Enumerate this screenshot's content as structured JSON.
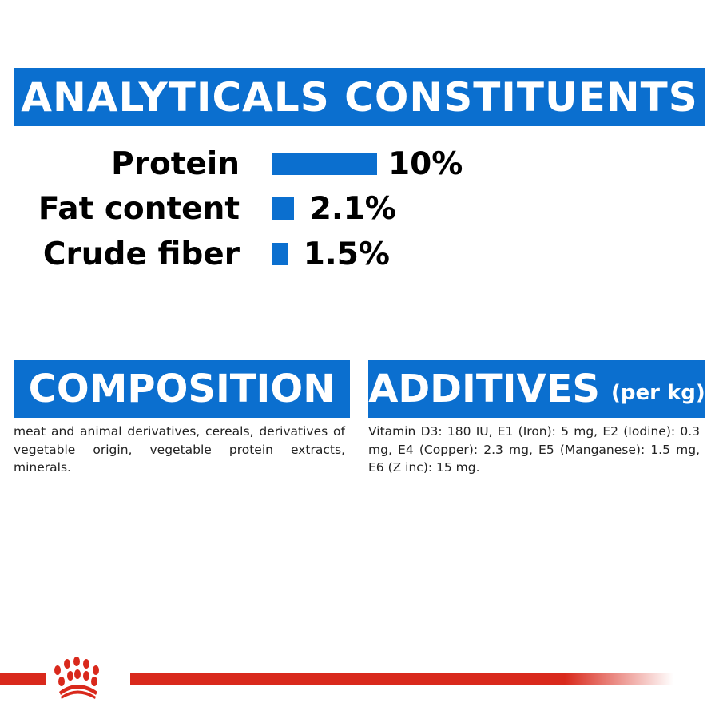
{
  "header": {
    "title": "ANALYTICALS CONSTITUENTS"
  },
  "constituents": [
    {
      "label": "Protein",
      "value": "10%",
      "percent": 10
    },
    {
      "label": "Fat content",
      "value": "2.1%",
      "percent": 2.1
    },
    {
      "label": "Crude fiber",
      "value": "1.5%",
      "percent": 1.5
    }
  ],
  "composition": {
    "title": "COMPOSITION",
    "text": "meat and animal derivatives, cereals, derivatives of vegetable origin, vegetable protein extracts, minerals."
  },
  "additives": {
    "title": "ADDITIVES",
    "subtitle": "(per kg)",
    "text": "Vitamin D3: 180 IU, E1 (Iron): 5 mg, E2 (Iodine): 0.3 mg, E4 (Copper): 2.3 mg, E5 (Manganese): 1.5 mg, E6 (Z inc): 15 mg."
  },
  "colors": {
    "accent": "#0b6fcf",
    "brand_red": "#d9291c"
  },
  "logo": {
    "icon": "royal-crown-logo"
  }
}
